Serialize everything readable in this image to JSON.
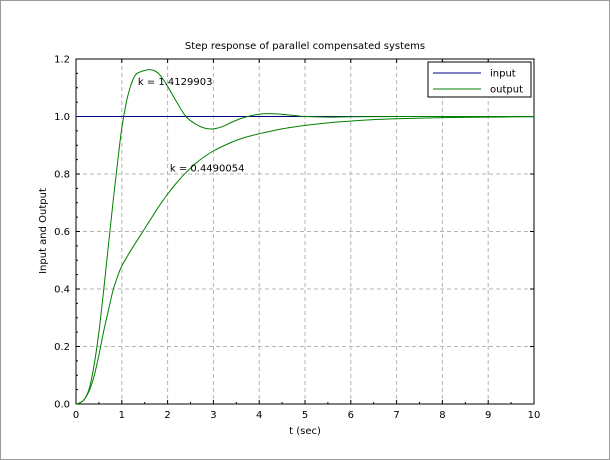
{
  "chart_data": {
    "type": "line",
    "title": "Step response of parallel compensated systems",
    "xlabel": "t (sec)",
    "ylabel": "Input and Output",
    "xlim": [
      0,
      10
    ],
    "ylim": [
      0,
      1.2
    ],
    "xticks": [
      0,
      1,
      2,
      3,
      4,
      5,
      6,
      7,
      8,
      9,
      10
    ],
    "yticks": [
      0.0,
      0.2,
      0.4,
      0.6,
      0.8,
      1.0,
      1.2
    ],
    "ytick_labels": [
      "0.0",
      "0.2",
      "0.4",
      "0.6",
      "0.8",
      "1.0",
      "1.2"
    ],
    "grid": true,
    "legend_position": "top-right",
    "legend": [
      {
        "label": "input",
        "color": "#000080"
      },
      {
        "label": "output",
        "color": "#007f00"
      }
    ],
    "series": [
      {
        "name": "input",
        "color": "#000080",
        "x": [
          0,
          10
        ],
        "y": [
          1.0,
          1.0
        ]
      },
      {
        "name": "output",
        "color": "#007f00",
        "x": [
          0,
          0.1,
          0.2,
          0.3,
          0.4,
          0.5,
          0.6,
          0.7,
          0.8,
          0.9,
          1.0,
          1.1,
          1.2,
          1.3,
          1.4,
          1.5,
          1.6,
          1.7,
          1.8,
          1.9,
          2.0,
          2.2,
          2.4,
          2.6,
          2.8,
          3.0,
          3.2,
          3.4,
          3.6,
          3.8,
          4.0,
          4.2,
          4.4,
          4.6,
          4.8,
          5.0,
          5.5,
          6.0,
          7.0,
          8.0,
          9.0,
          10.0
        ],
        "y": [
          0,
          0.005,
          0.02,
          0.06,
          0.14,
          0.25,
          0.39,
          0.54,
          0.69,
          0.83,
          0.96,
          1.05,
          1.11,
          1.145,
          1.155,
          1.16,
          1.163,
          1.16,
          1.15,
          1.13,
          1.105,
          1.05,
          1.0,
          0.975,
          0.96,
          0.957,
          0.965,
          0.98,
          0.993,
          1.002,
          1.008,
          1.01,
          1.009,
          1.006,
          1.003,
          1.0,
          0.998,
          0.999,
          1.0,
          1.0,
          1.0,
          1.0
        ]
      },
      {
        "name": "output",
        "color": "#007f00",
        "x": [
          0,
          0.1,
          0.2,
          0.3,
          0.4,
          0.5,
          0.6,
          0.7,
          0.8,
          0.9,
          1.0,
          1.2,
          1.4,
          1.6,
          1.8,
          2.0,
          2.2,
          2.4,
          2.6,
          2.8,
          3.0,
          3.25,
          3.5,
          3.75,
          4.0,
          4.5,
          5.0,
          5.5,
          6.0,
          6.5,
          7.0,
          8.0,
          9.0,
          10.0
        ],
        "y": [
          0,
          0.005,
          0.02,
          0.05,
          0.1,
          0.17,
          0.25,
          0.32,
          0.39,
          0.44,
          0.48,
          0.535,
          0.585,
          0.635,
          0.685,
          0.73,
          0.77,
          0.805,
          0.835,
          0.86,
          0.88,
          0.9,
          0.917,
          0.93,
          0.94,
          0.957,
          0.969,
          0.978,
          0.984,
          0.989,
          0.992,
          0.996,
          0.998,
          0.999
        ]
      }
    ],
    "annotations": [
      {
        "text": "k = 1.4129903",
        "x": 1.35,
        "y": 1.12
      },
      {
        "text": "k = 0.4490054",
        "x": 2.05,
        "y": 0.82
      }
    ]
  }
}
